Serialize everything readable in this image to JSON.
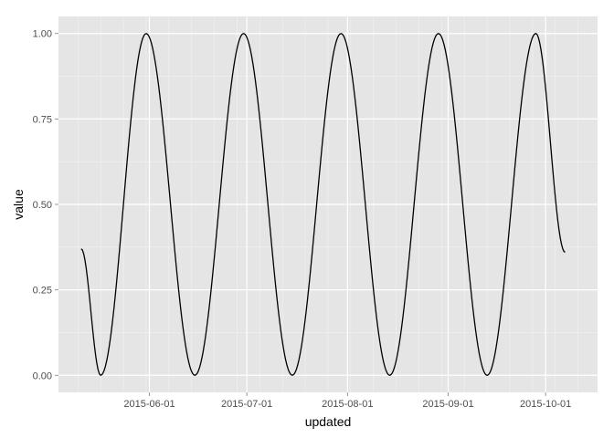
{
  "chart_data": {
    "type": "line",
    "xlabel": "updated",
    "ylabel": "value",
    "xlim": [
      "2015-05-04",
      "2015-10-17"
    ],
    "ylim": [
      -0.05,
      1.05
    ],
    "x_ticks": [
      "2015-06-01",
      "2015-07-01",
      "2015-08-01",
      "2015-09-01",
      "2015-10-01"
    ],
    "y_ticks": [
      0.0,
      0.25,
      0.5,
      0.75,
      1.0
    ],
    "y_tick_labels": [
      "0.00",
      "0.25",
      "0.50",
      "0.75",
      "1.00"
    ],
    "grid": true,
    "series": [
      {
        "color": "#000000",
        "x_start": "2015-05-11",
        "x_end": "2015-10-07",
        "points": [
          [
            "2015-05-11",
            0.37
          ],
          [
            "2015-05-17",
            0.0
          ],
          [
            "2015-05-31",
            1.0
          ],
          [
            "2015-06-15",
            0.0
          ],
          [
            "2015-06-30",
            1.0
          ],
          [
            "2015-07-15",
            0.0
          ],
          [
            "2015-07-30",
            1.0
          ],
          [
            "2015-08-14",
            0.0
          ],
          [
            "2015-08-29",
            1.0
          ],
          [
            "2015-09-13",
            0.0
          ],
          [
            "2015-09-28",
            1.0
          ],
          [
            "2015-10-07",
            0.36
          ]
        ]
      }
    ]
  }
}
